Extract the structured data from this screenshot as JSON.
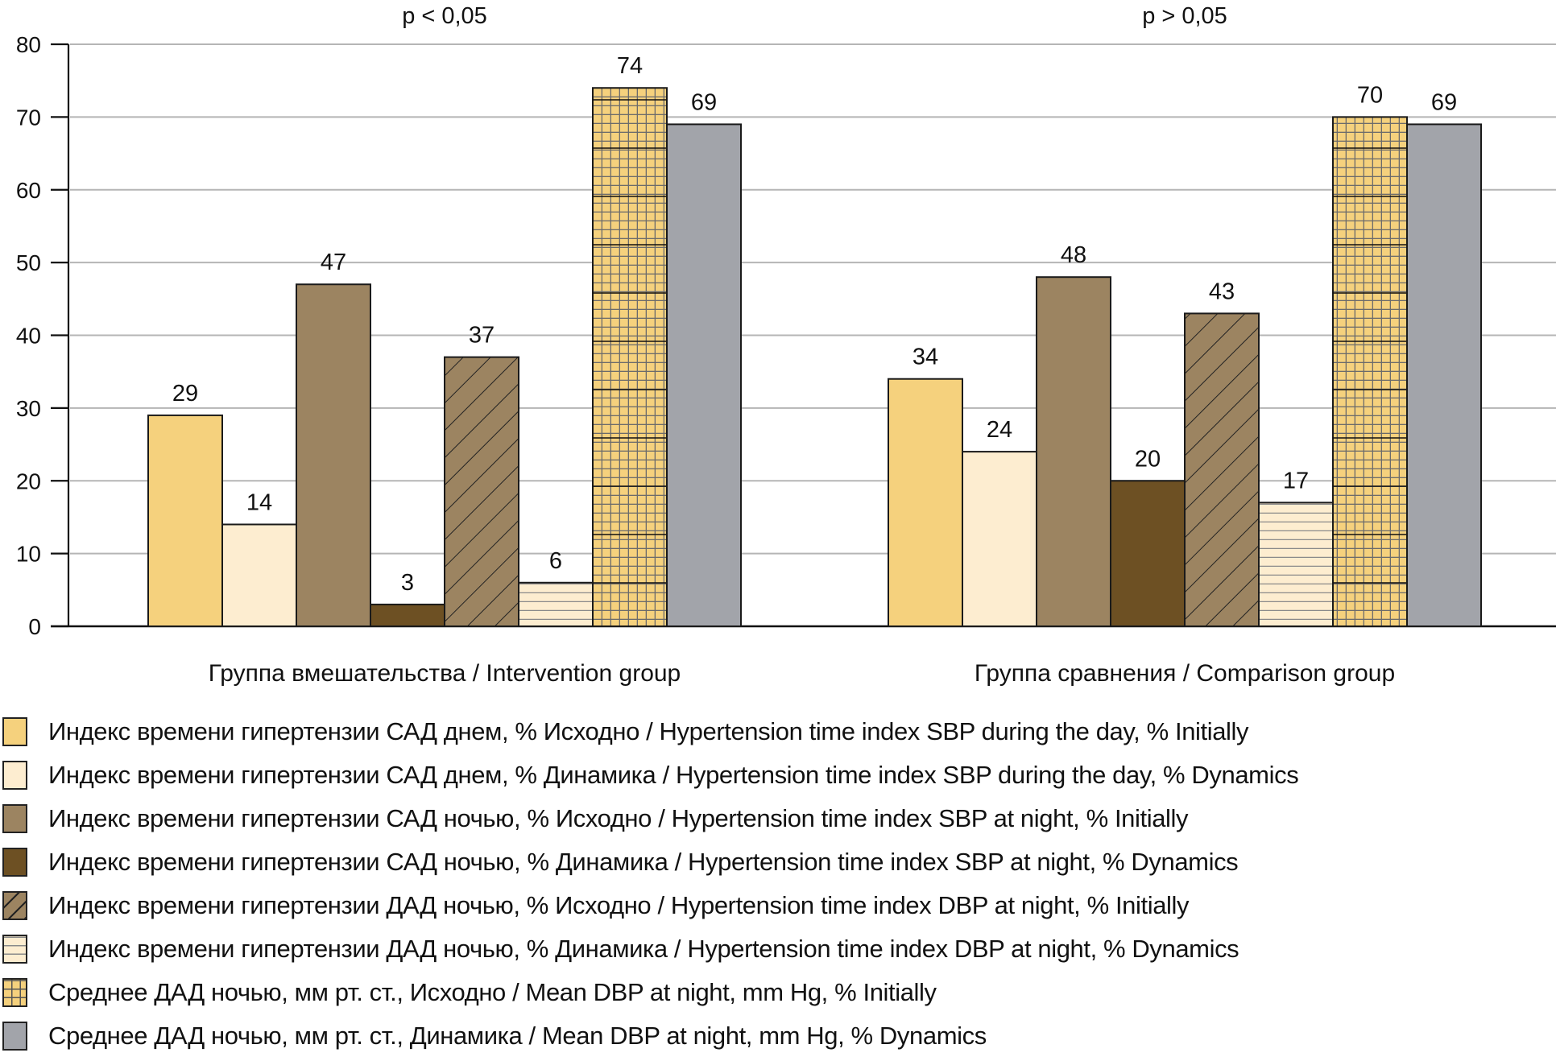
{
  "chart_data": {
    "type": "bar",
    "title": "",
    "xlabel": "",
    "ylabel": "",
    "ylim": [
      0,
      80
    ],
    "yticks": [
      0,
      10,
      20,
      30,
      40,
      50,
      60,
      70,
      80
    ],
    "grid": true,
    "categories": [
      "Группа вмешательства / Intervention group",
      "Группа сравнения / Comparison group"
    ],
    "annotations": [
      "p < 0,05",
      "p > 0,05"
    ],
    "legend_position": "bottom",
    "series": [
      {
        "name": "Индекс времени гипертензии САД днем, % Исходно / Hypertension time index SBP during the day, % Initially",
        "values": [
          29,
          34
        ],
        "color": "#f5d17d",
        "pattern": "solid"
      },
      {
        "name": "Индекс времени гипертензии САД днем, % Динамика / Hypertension time index SBP during the day, % Dynamics",
        "values": [
          14,
          24
        ],
        "color": "#fdedd0",
        "pattern": "solid"
      },
      {
        "name": "Индекс времени гипертензии САД ночью, % Исходно / Hypertension time index SBP at night, % Initially",
        "values": [
          47,
          48
        ],
        "color": "#9c8461",
        "pattern": "solid"
      },
      {
        "name": "Индекс времени гипертензии САД ночью, % Динамика / Hypertension time index SBP at night, % Dynamics",
        "values": [
          3,
          20
        ],
        "color": "#6d5023",
        "pattern": "solid"
      },
      {
        "name": "Индекс времени гипертензии ДАД ночью, % Исходно / Hypertension time index DBP at night, % Initially",
        "values": [
          37,
          43
        ],
        "color": "#9c8461",
        "pattern": "diagonal"
      },
      {
        "name": "Индекс времени гипертензии ДАД ночью, % Динамика / Hypertension time index DBP at night, % Dynamics",
        "values": [
          6,
          17
        ],
        "color": "#fdedd0",
        "pattern": "horizontal"
      },
      {
        "name": "Среднее ДАД ночью, мм рт. ст., Исходно / Mean DBP at night, mm Hg, % Initially",
        "values": [
          74,
          70
        ],
        "color": "#f5d17d",
        "pattern": "grid"
      },
      {
        "name": "Среднее ДАД ночью, мм рт. ст., Динамика / Mean DBP at night, mm Hg, % Dynamics",
        "values": [
          69,
          69
        ],
        "color": "#a2a4aa",
        "pattern": "solid"
      }
    ]
  }
}
